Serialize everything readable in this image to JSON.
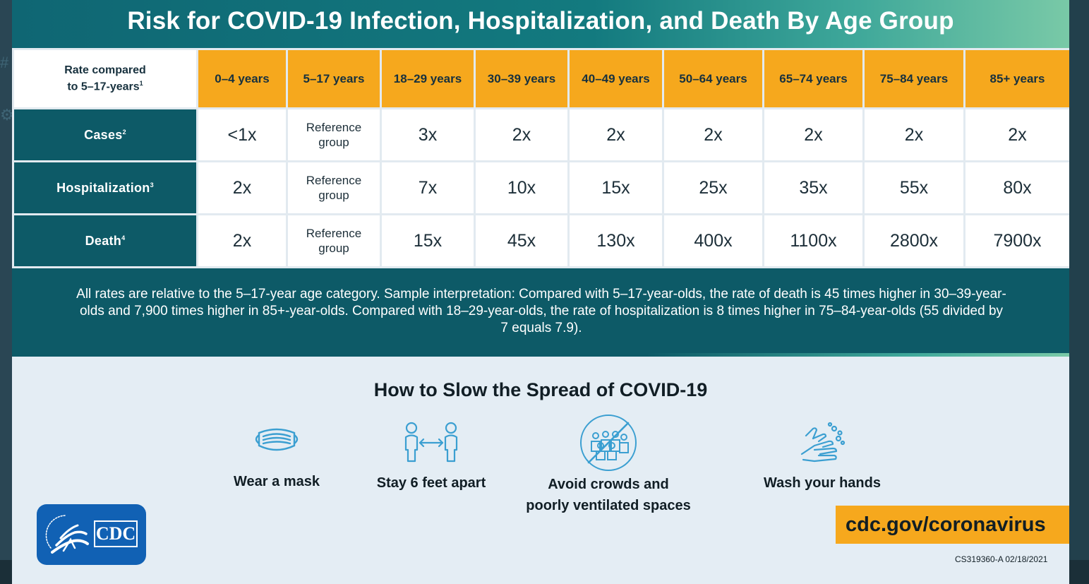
{
  "title": "Risk for COVID-19 Infection, Hospitalization, and Death By Age Group",
  "table": {
    "corner_line1": "Rate compared",
    "corner_line2": "to 5–17-years",
    "corner_sup": "1",
    "columns": [
      "0–4 years",
      "5–17 years",
      "18–29 years",
      "30–39 years",
      "40–49 years",
      "50–64 years",
      "65–74 years",
      "75–84 years",
      "85+ years"
    ],
    "rows": [
      {
        "label": "Cases",
        "sup": "2",
        "cells": [
          "<1x",
          "Reference group",
          "3x",
          "2x",
          "2x",
          "2x",
          "2x",
          "2x",
          "2x"
        ]
      },
      {
        "label": "Hospitalization",
        "sup": "3",
        "cells": [
          "2x",
          "Reference group",
          "7x",
          "10x",
          "15x",
          "25x",
          "35x",
          "55x",
          "80x"
        ]
      },
      {
        "label": "Death",
        "sup": "4",
        "cells": [
          "2x",
          "Reference group",
          "15x",
          "45x",
          "130x",
          "400x",
          "1100x",
          "2800x",
          "7900x"
        ]
      }
    ],
    "reference_line1": "Reference",
    "reference_line2": "group"
  },
  "note": "All rates are relative to the 5–17-year age category. Sample interpretation: Compared with 5–17-year-olds, the rate of death is 45 times higher in 30–39-year-olds and 7,900 times higher in 85+-year-olds. Compared with 18–29-year-olds, the rate of hospitalization is 8 times higher in 75–84-year-olds (55 divided by 7 equals 7.9).",
  "tips": {
    "heading": "How to Slow the Spread of COVID-19",
    "items": [
      {
        "icon": "mask-icon",
        "label": "Wear a mask"
      },
      {
        "icon": "distance-icon",
        "label": "Stay 6 feet apart"
      },
      {
        "icon": "no-crowds-icon",
        "label_line1": "Avoid crowds and",
        "label_line2": "poorly ventilated spaces"
      },
      {
        "icon": "hand-washing-icon",
        "label": "Wash your hands"
      }
    ]
  },
  "logo": {
    "text": "CDC",
    "icon": "hhs-eagle-icon"
  },
  "url": "cdc.gov/coronavirus",
  "doc_code": "CS319360-A 02/18/2021",
  "colors": {
    "teal": "#0d5a67",
    "orange": "#f6a81d",
    "icon_blue": "#3b9fd1",
    "cdc_blue": "#1161b4"
  }
}
